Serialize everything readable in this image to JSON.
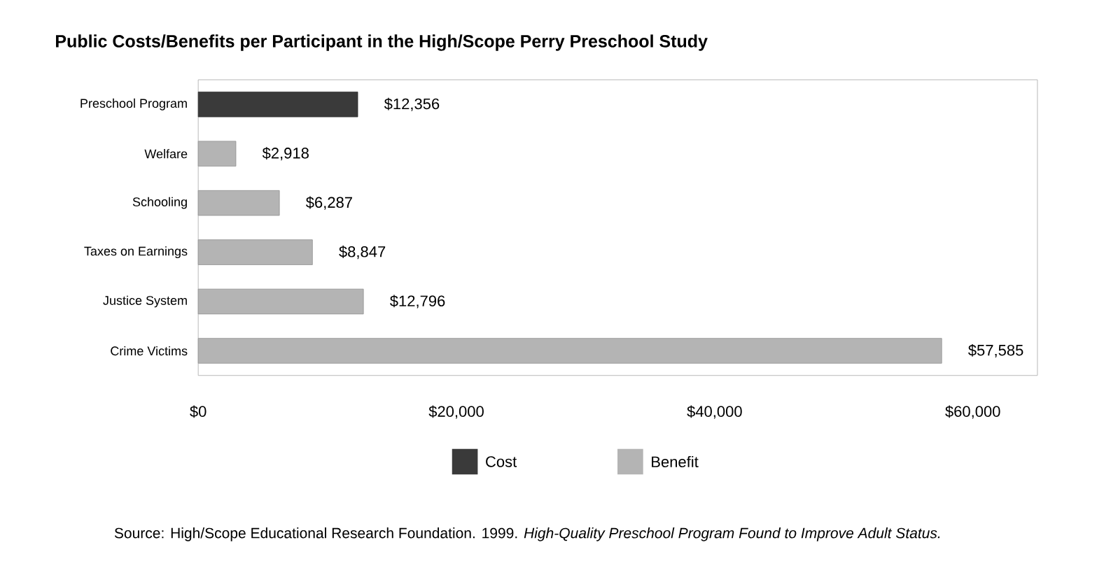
{
  "chart_data": {
    "type": "bar",
    "orientation": "horizontal",
    "title": "Public Costs/Benefits per Participant in the High/Scope Perry Preschool Study",
    "categories": [
      "Preschool Program",
      "Welfare",
      "Schooling",
      "Taxes on Earnings",
      "Justice System",
      "Crime Victims"
    ],
    "series": [
      {
        "name": "Cost",
        "color": "#3a3a3a",
        "values": [
          12356,
          null,
          null,
          null,
          null,
          null
        ],
        "value_labels": [
          "$12,356",
          null,
          null,
          null,
          null,
          null
        ]
      },
      {
        "name": "Benefit",
        "color": "#b4b4b4",
        "values": [
          null,
          2918,
          6287,
          8847,
          12796,
          57585
        ],
        "value_labels": [
          null,
          "$2,918",
          "$6,287",
          "$8,847",
          "$12,796",
          "$57,585"
        ]
      }
    ],
    "xlim": [
      0,
      65000
    ],
    "xticks": [
      {
        "value": 0,
        "label": "$0"
      },
      {
        "value": 20000,
        "label": "$20,000"
      },
      {
        "value": 40000,
        "label": "$40,000"
      },
      {
        "value": 60000,
        "label": "$60,000"
      }
    ],
    "legend": "bottom",
    "grid": false,
    "annotations": [
      "Source:  High/Scope Educational Research Foundation. 1999. *High-Quality Preschool Program Found to Improve Adult Status.*"
    ]
  }
}
